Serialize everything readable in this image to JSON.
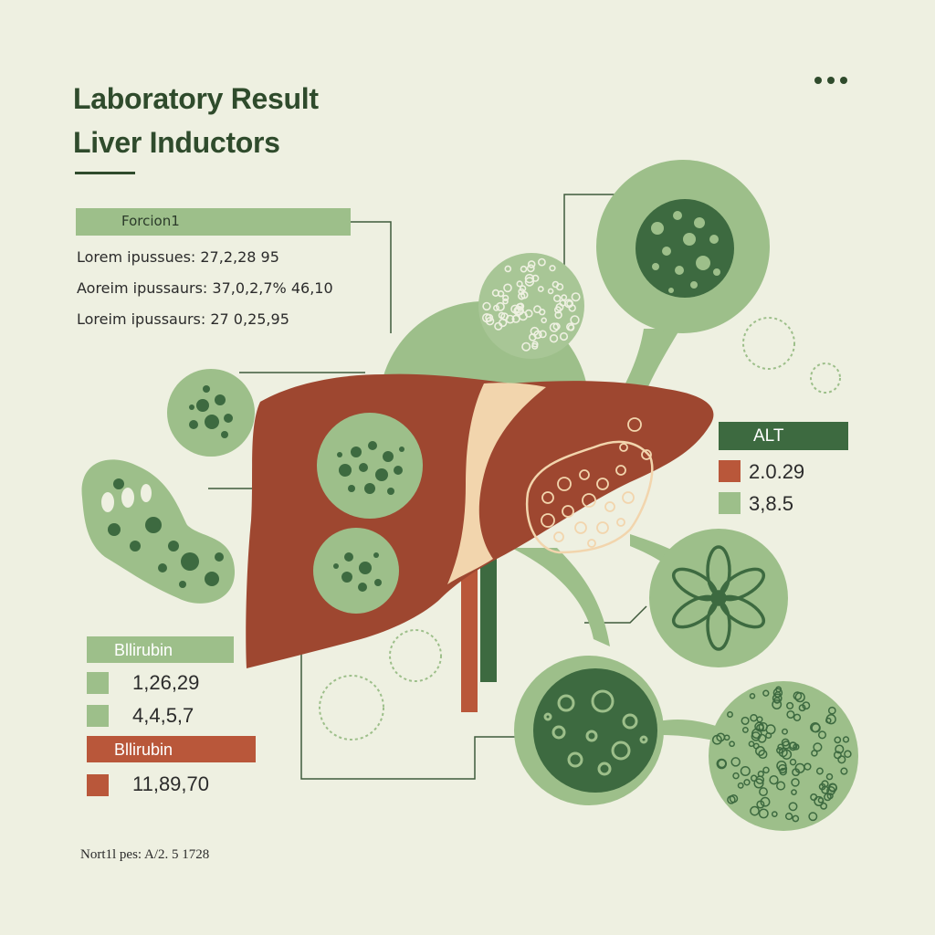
{
  "header": {
    "title_line1": "Laboratory Result",
    "title_line2": "Liver Inductors"
  },
  "menu": {
    "icon": "more-dots-icon"
  },
  "fraction_panel": {
    "label": "Forcion1",
    "rows": [
      "Lorem ipussues: 27,2,28 95",
      "Aoreim ipussaurs: 37,0,2,7% 46,10",
      "Loreim ipussaurs: 27 0,25,95"
    ]
  },
  "alt_panel": {
    "label": "ALT",
    "values": [
      "2.0.29",
      "3,8.5"
    ]
  },
  "bilirubin_panel_1": {
    "label": "Bllirubin",
    "values": [
      "1,26,29",
      "4,4,5,7"
    ]
  },
  "bilirubin_panel_2": {
    "label": "Bllirubin",
    "values": [
      "11,89,70"
    ]
  },
  "footnote": "Nort1l pes: A/2. 5 1728",
  "colors": {
    "background": "#eef0e1",
    "liver": "#9e4730",
    "dark_green": "#3d6a40",
    "light_green": "#9dbf8a",
    "rust": "#b9573a",
    "cream": "#f2d5ad"
  }
}
